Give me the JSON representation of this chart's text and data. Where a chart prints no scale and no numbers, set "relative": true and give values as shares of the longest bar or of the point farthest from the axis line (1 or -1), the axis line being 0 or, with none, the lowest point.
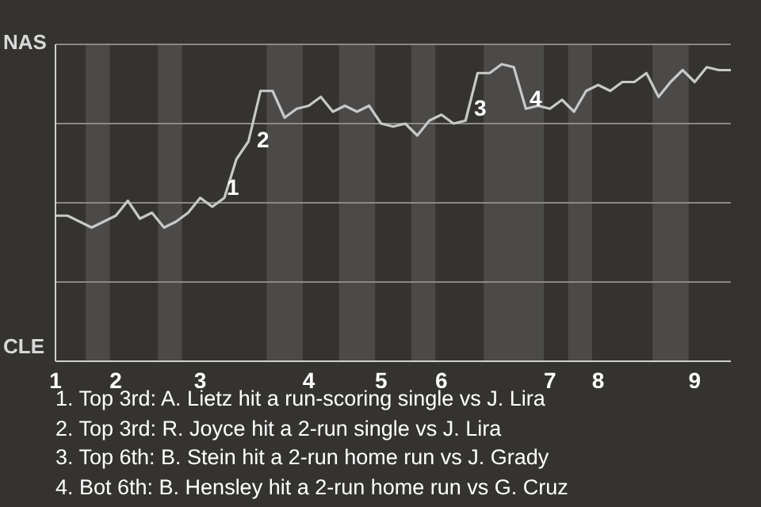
{
  "chart_data": {
    "type": "line",
    "relative": true,
    "categories": [
      "1",
      null,
      null,
      null,
      null,
      "2",
      null,
      null,
      null,
      null,
      null,
      null,
      "3",
      null,
      null,
      null,
      null,
      null,
      null,
      null,
      null,
      "4",
      null,
      null,
      null,
      null,
      null,
      "5",
      null,
      null,
      null,
      null,
      "6",
      null,
      null,
      null,
      null,
      null,
      null,
      null,
      null,
      "7",
      null,
      null,
      null,
      "8",
      null,
      null,
      null,
      null,
      null,
      null,
      null,
      "9",
      null,
      null,
      null
    ],
    "series": [
      {
        "color": "#c8c8c8",
        "values": [
          0.49,
          0.49,
          0.47,
          0.45,
          0.47,
          0.49,
          0.54,
          0.48,
          0.5,
          0.45,
          0.47,
          0.5,
          0.55,
          0.52,
          0.55,
          0.68,
          0.74,
          0.91,
          0.91,
          0.82,
          0.85,
          0.86,
          0.89,
          0.84,
          0.86,
          0.84,
          0.86,
          0.8,
          0.79,
          0.8,
          0.76,
          0.81,
          0.83,
          0.8,
          0.81,
          0.97,
          0.97,
          1,
          0.99,
          0.85,
          0.86,
          0.85,
          0.88,
          0.84,
          0.91,
          0.93,
          0.91,
          0.94,
          0.94,
          0.97,
          0.89,
          0.94,
          0.98,
          0.94,
          0.99,
          0.98,
          0.98
        ]
      }
    ],
    "grid": "y",
    "marker": "none",
    "line_style": "solid",
    "annotations": [
      "1",
      "2",
      "3",
      "4",
      "NAS",
      "CLE",
      "1. Top 3rd: A. Lietz hit a run-scoring single vs J. Lira",
      "2. Top 3rd: R. Joyce hit a 2-run single vs J. Lira",
      "3. Top 6th: B. Stein hit a 2-run home run vs J. Grady",
      "4. Bot 6th: B. Hensley hit a 2-run home run vs G. Cruz"
    ]
  }
}
